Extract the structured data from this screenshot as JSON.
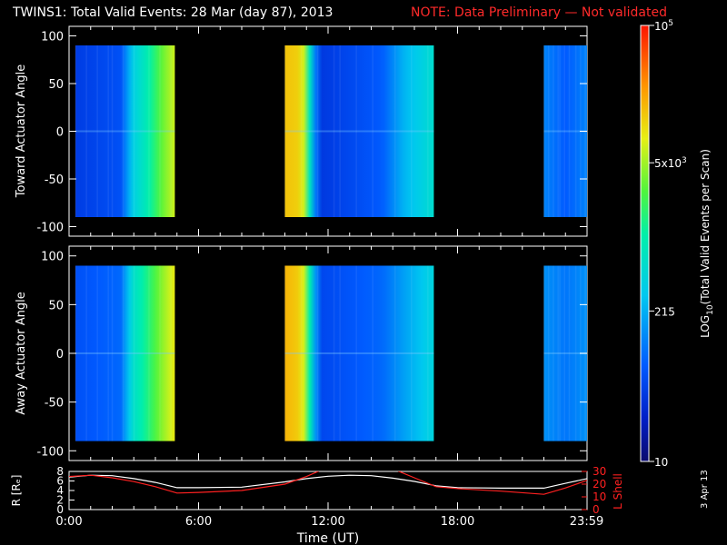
{
  "title": {
    "main": "TWINS1: Total Valid Events: 28 Mar (day  87), 2013",
    "note": "NOTE: Data Preliminary — Not validated"
  },
  "stamp": "3 Apr 13",
  "colors": {
    "background": "#000000",
    "frame": "#ffffff",
    "note": "#ff2a2a",
    "r_line": "#ffffff",
    "lshell_line": "#ff2020"
  },
  "chart_data": [
    {
      "type": "heatmap",
      "name": "toward",
      "ylabel": "Toward Actuator Angle",
      "ylim": [
        -110,
        110
      ],
      "yticks": [
        100,
        50,
        0,
        -50,
        -100
      ],
      "xlim": [
        0,
        24
      ],
      "segments": [
        {
          "start": 0.3,
          "end": 4.9,
          "profile": [
            [
              0.3,
              0.16
            ],
            [
              2.4,
              0.2
            ],
            [
              2.95,
              0.4
            ],
            [
              3.6,
              0.5
            ],
            [
              4.4,
              0.65
            ],
            [
              4.9,
              0.72
            ]
          ]
        },
        {
          "start": 10.0,
          "end": 16.9,
          "profile": [
            [
              10.0,
              0.8
            ],
            [
              10.8,
              0.78
            ],
            [
              11.3,
              0.35
            ],
            [
              11.6,
              0.15
            ],
            [
              14.5,
              0.22
            ],
            [
              15.5,
              0.35
            ],
            [
              16.9,
              0.45
            ]
          ]
        },
        {
          "start": 22.0,
          "end": 24.0,
          "profile": [
            [
              22.0,
              0.28
            ],
            [
              23.0,
              0.22
            ],
            [
              24.0,
              0.28
            ]
          ]
        }
      ],
      "data_yrange": [
        -90,
        90
      ]
    },
    {
      "type": "heatmap",
      "name": "away",
      "ylabel": "Away Actuator Angle",
      "ylim": [
        -110,
        110
      ],
      "yticks": [
        100,
        50,
        0,
        -50,
        -100
      ],
      "xlim": [
        0,
        24
      ],
      "segments": [
        {
          "start": 0.3,
          "end": 4.9,
          "profile": [
            [
              0.3,
              0.2
            ],
            [
              2.4,
              0.24
            ],
            [
              2.95,
              0.45
            ],
            [
              3.6,
              0.55
            ],
            [
              4.4,
              0.68
            ],
            [
              4.9,
              0.75
            ]
          ]
        },
        {
          "start": 10.0,
          "end": 16.9,
          "profile": [
            [
              10.0,
              0.82
            ],
            [
              10.8,
              0.78
            ],
            [
              11.3,
              0.4
            ],
            [
              11.6,
              0.18
            ],
            [
              14.5,
              0.24
            ],
            [
              15.5,
              0.32
            ],
            [
              16.9,
              0.42
            ]
          ]
        },
        {
          "start": 22.0,
          "end": 24.0,
          "profile": [
            [
              22.0,
              0.3
            ],
            [
              23.0,
              0.26
            ],
            [
              24.0,
              0.3
            ]
          ]
        }
      ],
      "data_yrange": [
        -90,
        90
      ]
    },
    {
      "type": "line",
      "name": "orbit",
      "xlabel": "Time (UT)",
      "xlim": [
        0,
        24
      ],
      "xticks": [
        {
          "value": 0,
          "label": "0:00"
        },
        {
          "value": 6,
          "label": "6:00"
        },
        {
          "value": 12,
          "label": "12:00"
        },
        {
          "value": 18,
          "label": "18:00"
        },
        {
          "value": 23.98,
          "label": "23:59"
        }
      ],
      "left_axis": {
        "label": "R [Rₑ]",
        "ylim": [
          0,
          8
        ],
        "yticks": [
          0,
          2,
          4,
          6,
          8
        ]
      },
      "right_axis": {
        "label": "L Shell",
        "ylim": [
          0,
          30
        ],
        "yticks": [
          0,
          10,
          20,
          30
        ]
      },
      "series": [
        {
          "name": "R",
          "axis": "left",
          "x": [
            0,
            1,
            2,
            3,
            4,
            5,
            6,
            8,
            10,
            11,
            12,
            13,
            14,
            15,
            16,
            17,
            18,
            20,
            22,
            23,
            24
          ],
          "y": [
            6.8,
            7.2,
            7.1,
            6.5,
            5.7,
            4.6,
            4.6,
            4.7,
            5.8,
            6.5,
            7.0,
            7.2,
            7.1,
            6.6,
            5.9,
            5.0,
            4.6,
            4.5,
            4.5,
            5.5,
            6.5
          ]
        },
        {
          "name": "L Shell",
          "axis": "right",
          "x": [
            0,
            1,
            2,
            3,
            4,
            5,
            6,
            8,
            10,
            11,
            11.8,
            15.0,
            16,
            17,
            18,
            20,
            22,
            23,
            24
          ],
          "y": [
            26,
            27,
            25,
            22,
            18,
            13,
            13.5,
            15,
            20,
            26,
            32,
            32,
            25,
            18,
            16.5,
            14.5,
            12,
            17,
            23
          ]
        }
      ]
    }
  ],
  "colorbar": {
    "label": "LOG10(Total Valid Events per Scan)",
    "ticks": [
      {
        "frac": 1.0,
        "label": "10^5"
      },
      {
        "frac": 0.685,
        "label": "5x10^3"
      },
      {
        "frac": 0.345,
        "label": "215"
      },
      {
        "frac": 0.0,
        "label": "10"
      }
    ]
  }
}
